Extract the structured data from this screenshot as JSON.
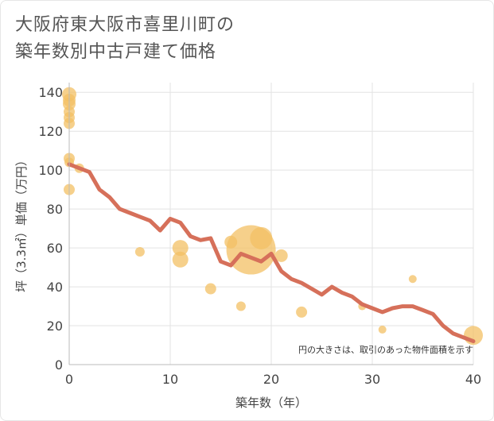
{
  "chart_data": {
    "type": "scatter+line",
    "title_lines": [
      "大阪府東大阪市喜里川町の",
      "築年数別中古戸建て価格"
    ],
    "xlabel": "築年数（年）",
    "ylabel": "坪（3.3㎡）単価（万円）",
    "xlim": [
      0,
      40
    ],
    "ylim": [
      0,
      145
    ],
    "xticks": [
      0,
      10,
      20,
      30,
      40
    ],
    "yticks": [
      0,
      20,
      40,
      60,
      80,
      100,
      120,
      140
    ],
    "grid": true,
    "note": "円の大きさは、取引のあった物件面積を示す",
    "colors": {
      "line": "#d6705a",
      "bubble": "#f3c064",
      "grid": "#e3e3e3",
      "title": "#555555"
    },
    "scatter": [
      {
        "x": 0,
        "y": 139,
        "size": 9
      },
      {
        "x": 0,
        "y": 136,
        "size": 8
      },
      {
        "x": 0,
        "y": 134,
        "size": 8
      },
      {
        "x": 0,
        "y": 130,
        "size": 7
      },
      {
        "x": 0,
        "y": 127,
        "size": 7
      },
      {
        "x": 0,
        "y": 124,
        "size": 7
      },
      {
        "x": 0,
        "y": 106,
        "size": 7
      },
      {
        "x": 0,
        "y": 104,
        "size": 6
      },
      {
        "x": 0,
        "y": 90,
        "size": 7
      },
      {
        "x": 1,
        "y": 101,
        "size": 6
      },
      {
        "x": 7,
        "y": 58,
        "size": 6
      },
      {
        "x": 11,
        "y": 60,
        "size": 10
      },
      {
        "x": 11,
        "y": 54,
        "size": 10
      },
      {
        "x": 14,
        "y": 39,
        "size": 7
      },
      {
        "x": 16,
        "y": 63,
        "size": 8
      },
      {
        "x": 17,
        "y": 30,
        "size": 6
      },
      {
        "x": 18,
        "y": 59,
        "size": 31
      },
      {
        "x": 19,
        "y": 65,
        "size": 14
      },
      {
        "x": 21,
        "y": 56,
        "size": 8
      },
      {
        "x": 23,
        "y": 27,
        "size": 7
      },
      {
        "x": 29,
        "y": 30,
        "size": 5
      },
      {
        "x": 31,
        "y": 18,
        "size": 5
      },
      {
        "x": 34,
        "y": 44,
        "size": 5
      },
      {
        "x": 40,
        "y": 15,
        "size": 12
      }
    ],
    "line": {
      "x": [
        0,
        1,
        2,
        3,
        4,
        5,
        6,
        7,
        8,
        9,
        10,
        11,
        12,
        13,
        14,
        15,
        16,
        17,
        18,
        19,
        20,
        21,
        22,
        23,
        24,
        25,
        26,
        27,
        28,
        29,
        30,
        31,
        32,
        33,
        34,
        35,
        36,
        37,
        38,
        39,
        40
      ],
      "y": [
        103,
        101,
        99,
        90,
        86,
        80,
        78,
        76,
        74,
        69,
        75,
        73,
        66,
        64,
        65,
        53,
        51,
        57,
        55,
        53,
        57,
        48,
        44,
        42,
        39,
        36,
        40,
        37,
        35,
        31,
        29,
        27,
        29,
        30,
        30,
        28,
        26,
        20,
        16,
        14,
        12
      ]
    }
  }
}
